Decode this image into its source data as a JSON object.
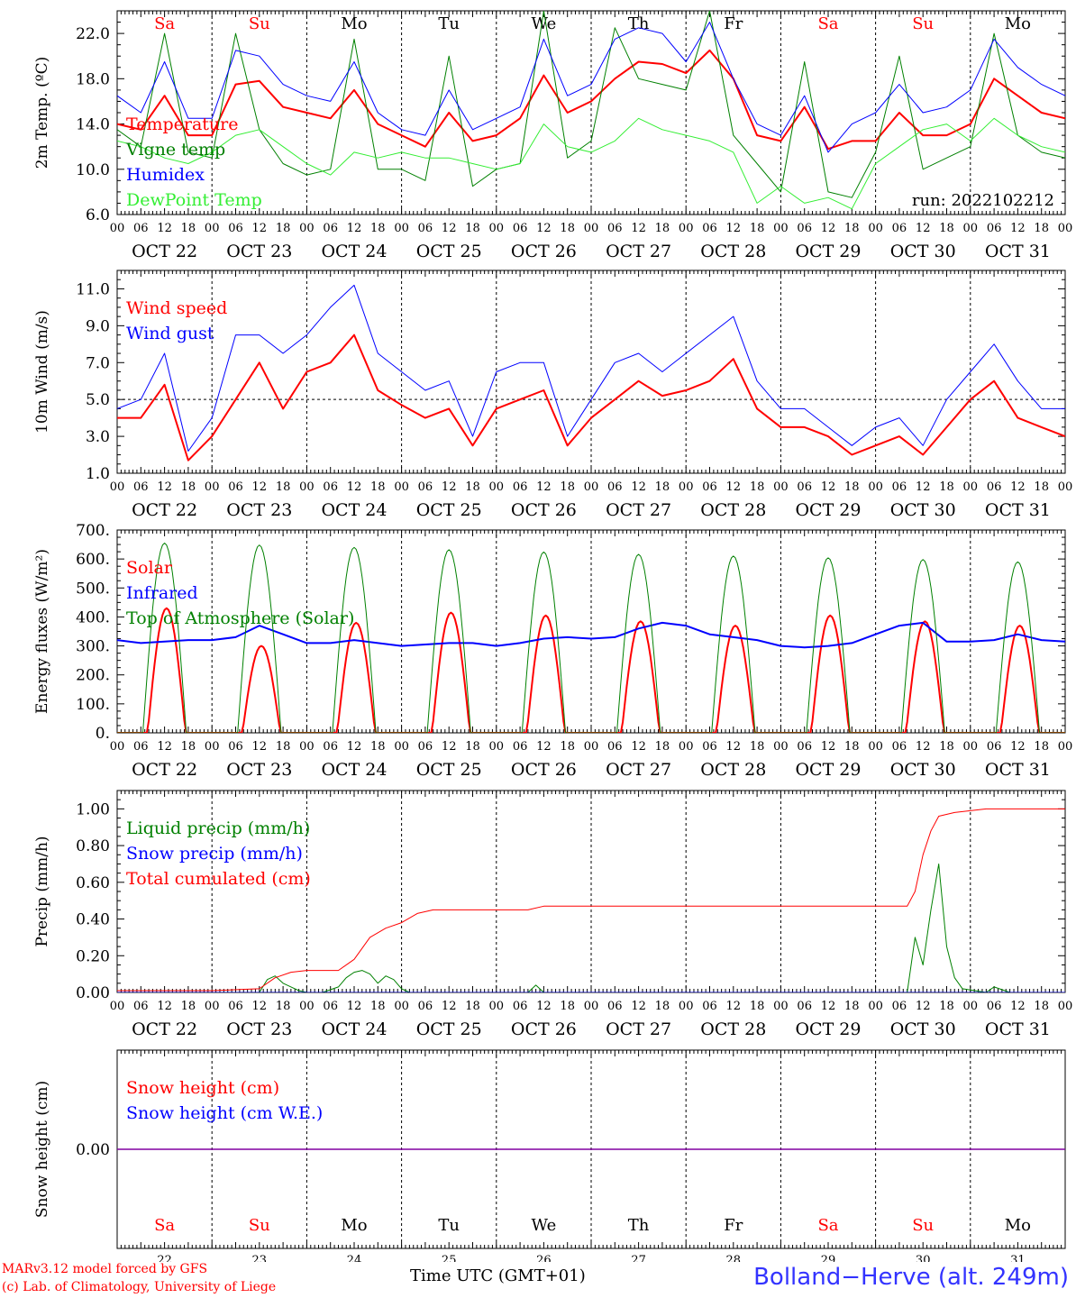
{
  "footer": {
    "model": "MARv3.12 model forced by GFS",
    "copyright": "(c) Lab. of Climatology, University of Liege",
    "time_label": "Time UTC (GMT+01)",
    "station": "Bolland−Herve (alt. 249m)"
  },
  "chart_data": [
    {
      "type": "line",
      "ylabel": "2m Temp. (ºC)",
      "ylim": [
        6,
        24
      ],
      "yticks": [
        "6.0",
        "10.0",
        "14.0",
        "18.0",
        "22.0"
      ],
      "yticks_values": [
        6,
        10,
        14,
        18,
        22
      ],
      "annotation": "run: 2022102212",
      "day_names": [
        "Sa",
        "Su",
        "Mo",
        "Tu",
        "We",
        "Th",
        "Fr",
        "Sa",
        "Su",
        "Mo"
      ],
      "day_colors": [
        "#ff0000",
        "#ff0000",
        "#000000",
        "#000000",
        "#000000",
        "#000000",
        "#000000",
        "#ff0000",
        "#ff0000",
        "#000000"
      ],
      "date_labels": [
        "OCT 22",
        "OCT 23",
        "OCT 24",
        "OCT 25",
        "OCT 26",
        "OCT 27",
        "OCT 28",
        "OCT 29",
        "OCT 30",
        "OCT 31"
      ],
      "hour_labels": [
        "00",
        "06",
        "12",
        "18"
      ],
      "x_unit": "hours since OCT 22 00 UTC",
      "series": [
        {
          "name": "Temperature",
          "color": "#ff0000",
          "width": 2,
          "x": [
            0,
            6,
            12,
            18,
            24,
            30,
            36,
            42,
            48,
            54,
            60,
            66,
            72,
            78,
            84,
            90,
            96,
            102,
            108,
            114,
            120,
            126,
            132,
            138,
            144,
            150,
            156,
            162,
            168,
            174,
            180,
            186,
            192,
            198,
            204,
            210,
            216,
            222,
            228,
            234,
            240
          ],
          "y": [
            14.0,
            13.5,
            16.5,
            13.0,
            13.0,
            17.5,
            17.8,
            15.5,
            15.0,
            14.5,
            17.0,
            14.0,
            13.0,
            12.0,
            15.0,
            12.5,
            13.0,
            14.5,
            18.3,
            15.0,
            16.0,
            18.0,
            19.5,
            19.3,
            18.5,
            20.5,
            18.0,
            13.0,
            12.5,
            15.5,
            11.8,
            12.5,
            12.5,
            15.0,
            13.0,
            13.0,
            14.0,
            18.0,
            16.5,
            15.0,
            14.5
          ]
        },
        {
          "name": "Vigne temp",
          "color": "#008000",
          "width": 1,
          "x": [
            0,
            6,
            12,
            18,
            24,
            30,
            36,
            42,
            48,
            54,
            60,
            66,
            72,
            78,
            84,
            90,
            96,
            102,
            108,
            114,
            120,
            126,
            132,
            138,
            144,
            150,
            156,
            162,
            168,
            174,
            180,
            186,
            192,
            198,
            204,
            210,
            216,
            222,
            228,
            234,
            240
          ],
          "y": [
            13.5,
            12.0,
            22.0,
            11.5,
            11.0,
            22.0,
            13.5,
            10.5,
            9.5,
            10.0,
            21.5,
            10.0,
            10.0,
            9.0,
            20.0,
            8.5,
            10.0,
            10.5,
            24.0,
            11.0,
            12.5,
            22.5,
            18.0,
            17.5,
            17.0,
            24.0,
            13.0,
            10.5,
            8.0,
            19.5,
            8.0,
            7.5,
            11.5,
            20.0,
            10.0,
            11.0,
            12.0,
            22.0,
            13.0,
            11.5,
            11.0
          ]
        },
        {
          "name": "Humidex",
          "color": "#0000ff",
          "width": 1,
          "x": [
            0,
            6,
            12,
            18,
            24,
            30,
            36,
            42,
            48,
            54,
            60,
            66,
            72,
            78,
            84,
            90,
            96,
            102,
            108,
            114,
            120,
            126,
            132,
            138,
            144,
            150,
            156,
            162,
            168,
            174,
            180,
            186,
            192,
            198,
            204,
            210,
            216,
            222,
            228,
            234,
            240
          ],
          "y": [
            16.5,
            15.0,
            19.5,
            14.5,
            14.5,
            20.5,
            20.0,
            17.5,
            16.5,
            16.0,
            19.5,
            15.0,
            13.5,
            13.0,
            17.0,
            13.5,
            14.5,
            15.5,
            21.5,
            16.5,
            17.5,
            21.5,
            22.5,
            22.0,
            19.5,
            23.0,
            18.0,
            14.0,
            13.0,
            16.5,
            11.5,
            14.0,
            15.0,
            17.5,
            15.0,
            15.5,
            17.0,
            21.5,
            19.0,
            17.5,
            16.5
          ]
        },
        {
          "name": "DewPoint Temp",
          "color": "#33ee33",
          "width": 1,
          "x": [
            0,
            6,
            12,
            18,
            24,
            30,
            36,
            42,
            48,
            54,
            60,
            66,
            72,
            78,
            84,
            90,
            96,
            102,
            108,
            114,
            120,
            126,
            132,
            138,
            144,
            150,
            156,
            162,
            168,
            174,
            180,
            186,
            192,
            198,
            204,
            210,
            216,
            222,
            228,
            234,
            240
          ],
          "y": [
            12.5,
            12.0,
            11.0,
            10.5,
            11.5,
            13.0,
            13.5,
            12.0,
            10.5,
            9.5,
            11.5,
            11.0,
            11.5,
            11.0,
            11.0,
            10.5,
            10.0,
            10.5,
            14.0,
            12.0,
            11.5,
            12.5,
            14.5,
            13.5,
            13.0,
            12.5,
            11.5,
            7.0,
            8.5,
            7.0,
            7.5,
            6.5,
            10.5,
            12.0,
            13.5,
            14.0,
            12.5,
            14.5,
            13.0,
            12.0,
            11.5
          ]
        }
      ]
    },
    {
      "type": "line",
      "ylabel": "10m Wind (m/s)",
      "ylim": [
        1,
        12
      ],
      "yticks": [
        "1.0",
        "3.0",
        "5.0",
        "7.0",
        "9.0",
        "11.0"
      ],
      "yticks_values": [
        1,
        3,
        5,
        7,
        9,
        11
      ],
      "reference_line": 5,
      "date_labels": [
        "OCT 22",
        "OCT 23",
        "OCT 24",
        "OCT 25",
        "OCT 26",
        "OCT 27",
        "OCT 28",
        "OCT 29",
        "OCT 30",
        "OCT 31"
      ],
      "hour_labels": [
        "00",
        "06",
        "12",
        "18"
      ],
      "series": [
        {
          "name": "Wind speed",
          "color": "#ff0000",
          "width": 2,
          "x": [
            0,
            6,
            12,
            18,
            24,
            30,
            36,
            42,
            48,
            54,
            60,
            66,
            72,
            78,
            84,
            90,
            96,
            102,
            108,
            114,
            120,
            126,
            132,
            138,
            144,
            150,
            156,
            162,
            168,
            174,
            180,
            186,
            192,
            198,
            204,
            210,
            216,
            222,
            228,
            234,
            240
          ],
          "y": [
            4.0,
            4.0,
            5.8,
            1.7,
            3.0,
            5.0,
            7.0,
            4.5,
            6.5,
            7.0,
            8.5,
            5.5,
            4.7,
            4.0,
            4.5,
            2.5,
            4.5,
            5.0,
            5.5,
            2.5,
            4.0,
            5.0,
            6.0,
            5.2,
            5.5,
            6.0,
            7.2,
            4.5,
            3.5,
            3.5,
            3.0,
            2.0,
            2.5,
            3.0,
            2.0,
            3.5,
            5.0,
            6.0,
            4.0,
            3.5,
            3.0
          ]
        },
        {
          "name": "Wind gust",
          "color": "#0000ff",
          "width": 1,
          "x": [
            0,
            6,
            12,
            18,
            24,
            30,
            36,
            42,
            48,
            54,
            60,
            66,
            72,
            78,
            84,
            90,
            96,
            102,
            108,
            114,
            120,
            126,
            132,
            138,
            144,
            150,
            156,
            162,
            168,
            174,
            180,
            186,
            192,
            198,
            204,
            210,
            216,
            222,
            228,
            234,
            240
          ],
          "y": [
            4.5,
            5.0,
            7.5,
            2.2,
            4.0,
            8.5,
            8.5,
            7.5,
            8.5,
            10.0,
            11.2,
            7.5,
            6.5,
            5.5,
            6.0,
            3.0,
            6.5,
            7.0,
            7.0,
            3.0,
            5.0,
            7.0,
            7.5,
            6.5,
            7.5,
            8.5,
            9.5,
            6.0,
            4.5,
            4.5,
            3.5,
            2.5,
            3.5,
            4.0,
            2.5,
            5.0,
            6.5,
            8.0,
            6.0,
            4.5,
            4.5
          ]
        }
      ]
    },
    {
      "type": "line",
      "ylabel": "Energy fluxes (W/m²)",
      "ylim": [
        0,
        700
      ],
      "yticks": [
        "0.",
        "100.",
        "200.",
        "300.",
        "400.",
        "500.",
        "600.",
        "700."
      ],
      "yticks_values": [
        0,
        100,
        200,
        300,
        400,
        500,
        600,
        700
      ],
      "date_labels": [
        "OCT 22",
        "OCT 23",
        "OCT 24",
        "OCT 25",
        "OCT 26",
        "OCT 27",
        "OCT 28",
        "OCT 29",
        "OCT 30",
        "OCT 31"
      ],
      "hour_labels": [
        "00",
        "06",
        "12",
        "18"
      ],
      "series": [
        {
          "name": "Solar",
          "color": "#ff0000",
          "width": 2,
          "daily_peak_hour": 12.5,
          "daily_halfwidth_hours": 4.8,
          "daily_peaks": [
            430,
            300,
            380,
            415,
            405,
            385,
            370,
            405,
            385,
            370
          ]
        },
        {
          "name": "Infrared",
          "color": "#0000ff",
          "width": 2,
          "x": [
            0,
            6,
            12,
            18,
            24,
            30,
            36,
            42,
            48,
            54,
            60,
            66,
            72,
            78,
            84,
            90,
            96,
            102,
            108,
            114,
            120,
            126,
            132,
            138,
            144,
            150,
            156,
            162,
            168,
            174,
            180,
            186,
            192,
            198,
            204,
            210,
            216,
            222,
            228,
            234,
            240
          ],
          "y": [
            320,
            310,
            315,
            320,
            320,
            330,
            370,
            340,
            310,
            310,
            320,
            310,
            300,
            305,
            310,
            310,
            300,
            310,
            325,
            330,
            325,
            330,
            360,
            380,
            370,
            340,
            330,
            320,
            300,
            295,
            300,
            310,
            340,
            370,
            380,
            315,
            315,
            320,
            340,
            320,
            315
          ]
        },
        {
          "name": "Top of Atmosphere (Solar)",
          "color": "#008000",
          "width": 1,
          "daily_peak_hour": 12.0,
          "daily_halfwidth_hours": 5.5,
          "daily_peaks": [
            655,
            648,
            640,
            632,
            624,
            616,
            610,
            604,
            598,
            590
          ]
        }
      ]
    },
    {
      "type": "line",
      "ylabel": "Precip (mm/h)",
      "ylim": [
        0,
        1.1
      ],
      "yticks": [
        "0.00",
        "0.20",
        "0.40",
        "0.60",
        "0.80",
        "1.00"
      ],
      "yticks_values": [
        0,
        0.2,
        0.4,
        0.6,
        0.8,
        1.0
      ],
      "date_labels": [
        "OCT 22",
        "OCT 23",
        "OCT 24",
        "OCT 25",
        "OCT 26",
        "OCT 27",
        "OCT 28",
        "OCT 29",
        "OCT 30",
        "OCT 31"
      ],
      "hour_labels": [
        "00",
        "06",
        "12",
        "18"
      ],
      "series": [
        {
          "name": "Liquid precip (mm/h)",
          "color": "#008000",
          "width": 1,
          "x": [
            0,
            36,
            38,
            40,
            42,
            44,
            46,
            48,
            52,
            56,
            58,
            60,
            62,
            64,
            66,
            68,
            70,
            72,
            74,
            76,
            78,
            80,
            96,
            104,
            106,
            108,
            200,
            202,
            204,
            206,
            208,
            210,
            212,
            214,
            220,
            222,
            226,
            240
          ],
          "y": [
            0,
            0,
            0.07,
            0.09,
            0.05,
            0.03,
            0.01,
            0,
            0,
            0.03,
            0.08,
            0.11,
            0.12,
            0.1,
            0.05,
            0.09,
            0.07,
            0.02,
            0,
            0,
            0,
            0,
            0,
            0,
            0.04,
            0,
            0,
            0.3,
            0.15,
            0.45,
            0.7,
            0.25,
            0.08,
            0.02,
            0,
            0.03,
            0,
            0
          ]
        },
        {
          "name": "Snow precip (mm/h)",
          "color": "#0000ff",
          "width": 1,
          "x": [
            0,
            240
          ],
          "y": [
            0,
            0
          ]
        },
        {
          "name": "Total cumulated (cm)",
          "color": "#ff0000",
          "width": 1,
          "x": [
            0,
            12,
            24,
            36,
            40,
            44,
            48,
            52,
            56,
            60,
            64,
            68,
            72,
            76,
            80,
            84,
            96,
            104,
            108,
            120,
            180,
            200,
            202,
            204,
            206,
            208,
            212,
            220,
            228,
            240
          ],
          "y": [
            0.01,
            0.01,
            0.01,
            0.02,
            0.08,
            0.11,
            0.12,
            0.12,
            0.12,
            0.18,
            0.3,
            0.35,
            0.38,
            0.43,
            0.45,
            0.45,
            0.45,
            0.45,
            0.47,
            0.47,
            0.47,
            0.47,
            0.55,
            0.75,
            0.88,
            0.96,
            0.98,
            1.0,
            1.0,
            1.0
          ]
        }
      ]
    },
    {
      "type": "line",
      "ylabel": "Snow height (cm)",
      "ylim": [
        -1,
        1
      ],
      "yticks": [
        "0.00"
      ],
      "yticks_values": [
        0
      ],
      "day_names": [
        "Sa",
        "Su",
        "Mo",
        "Tu",
        "We",
        "Th",
        "Fr",
        "Sa",
        "Su",
        "Mo"
      ],
      "day_colors": [
        "#ff0000",
        "#ff0000",
        "#000000",
        "#000000",
        "#000000",
        "#000000",
        "#000000",
        "#ff0000",
        "#ff0000",
        "#000000"
      ],
      "day_numbers": [
        "22",
        "23",
        "24",
        "25",
        "26",
        "27",
        "28",
        "29",
        "30",
        "31"
      ],
      "series": [
        {
          "name": "Snow height (cm)",
          "color": "#ff0000",
          "width": 1,
          "x": [
            0,
            240
          ],
          "y": [
            0,
            0
          ]
        },
        {
          "name": "Snow height (cm W.E.)",
          "color": "#0000ff",
          "width": 1,
          "x": [
            0,
            240
          ],
          "y": [
            0,
            0
          ]
        }
      ],
      "overlay_color": "#8000a0"
    }
  ]
}
